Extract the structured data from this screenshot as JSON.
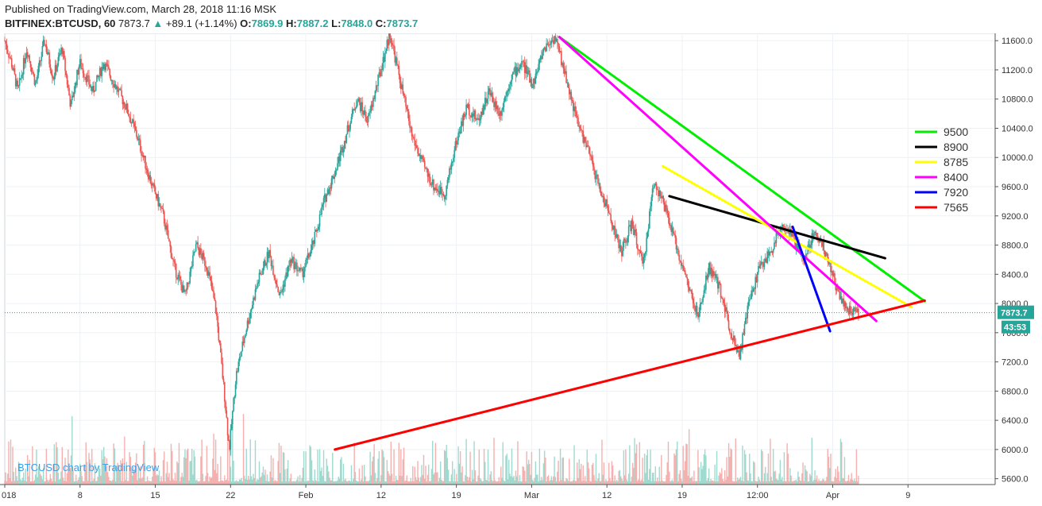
{
  "header": {
    "published": "Published on TradingView.com, March 28, 2018 11:16 MSK",
    "symbol": "BITFINEX:BTCUSD, 60",
    "last": "7873.7",
    "change": "+89.1 (+1.14%)",
    "o_label": "O:",
    "o_val": "7869.9",
    "h_label": "H:",
    "h_val": "7887.2",
    "l_label": "L:",
    "l_val": "7848.0",
    "c_label": "C:",
    "c_val": "7873.7"
  },
  "watermark": "BTCUSD chart by TradingView",
  "colors": {
    "up": "#26a69a",
    "down": "#ef5350",
    "last_price_badge": "#26a69a",
    "grid": "#eef1f5"
  },
  "chart_data": {
    "type": "line",
    "instrument": "BITFINEX:BTCUSD, 60",
    "x_ticks": [
      "018",
      "8",
      "15",
      "22",
      "Feb",
      "12",
      "19",
      "Mar",
      "12",
      "19",
      "12:00",
      "Apr",
      "9"
    ],
    "y_ticks": [
      5600.0,
      6000.0,
      6400.0,
      6800.0,
      7200.0,
      7600.0,
      8000.0,
      8400.0,
      8800.0,
      9200.0,
      9600.0,
      10000.0,
      10400.0,
      10800.0,
      11200.0,
      11600.0
    ],
    "ylim": [
      5520,
      11700
    ],
    "last_price": 7873.7,
    "last_price_label": "7873.7",
    "countdown_label": "43:53",
    "price_path": [
      {
        "x": 0.0,
        "y": 11600
      },
      {
        "x": 0.3,
        "y": 11300
      },
      {
        "x": 0.6,
        "y": 10900
      },
      {
        "x": 1.0,
        "y": 11500
      },
      {
        "x": 1.4,
        "y": 11000
      },
      {
        "x": 1.8,
        "y": 11600
      },
      {
        "x": 2.2,
        "y": 11100
      },
      {
        "x": 2.6,
        "y": 11500
      },
      {
        "x": 3.0,
        "y": 10700
      },
      {
        "x": 3.4,
        "y": 11300
      },
      {
        "x": 4.0,
        "y": 10900
      },
      {
        "x": 4.5,
        "y": 11300
      },
      {
        "x": 5.0,
        "y": 11000
      },
      {
        "x": 5.5,
        "y": 10700
      },
      {
        "x": 6.0,
        "y": 10300
      },
      {
        "x": 6.6,
        "y": 9700
      },
      {
        "x": 7.2,
        "y": 9200
      },
      {
        "x": 7.7,
        "y": 8500
      },
      {
        "x": 8.2,
        "y": 8100
      },
      {
        "x": 8.7,
        "y": 8800
      },
      {
        "x": 9.2,
        "y": 8500
      },
      {
        "x": 9.6,
        "y": 7900
      },
      {
        "x": 10.0,
        "y": 6700
      },
      {
        "x": 10.2,
        "y": 6000
      },
      {
        "x": 10.5,
        "y": 7000
      },
      {
        "x": 11.0,
        "y": 7700
      },
      {
        "x": 11.5,
        "y": 8300
      },
      {
        "x": 12.0,
        "y": 8700
      },
      {
        "x": 12.5,
        "y": 8100
      },
      {
        "x": 13.0,
        "y": 8600
      },
      {
        "x": 13.5,
        "y": 8400
      },
      {
        "x": 14.0,
        "y": 8800
      },
      {
        "x": 14.5,
        "y": 9400
      },
      {
        "x": 15.0,
        "y": 9800
      },
      {
        "x": 15.5,
        "y": 10300
      },
      {
        "x": 16.0,
        "y": 10800
      },
      {
        "x": 16.5,
        "y": 10500
      },
      {
        "x": 17.0,
        "y": 11100
      },
      {
        "x": 17.5,
        "y": 11700
      },
      {
        "x": 18.0,
        "y": 11000
      },
      {
        "x": 18.5,
        "y": 10300
      },
      {
        "x": 19.0,
        "y": 9900
      },
      {
        "x": 19.5,
        "y": 9600
      },
      {
        "x": 20.0,
        "y": 9500
      },
      {
        "x": 20.5,
        "y": 10200
      },
      {
        "x": 21.0,
        "y": 10700
      },
      {
        "x": 21.5,
        "y": 10500
      },
      {
        "x": 22.0,
        "y": 10900
      },
      {
        "x": 22.5,
        "y": 10600
      },
      {
        "x": 23.0,
        "y": 11100
      },
      {
        "x": 23.5,
        "y": 11300
      },
      {
        "x": 24.0,
        "y": 11000
      },
      {
        "x": 24.5,
        "y": 11500
      },
      {
        "x": 25.0,
        "y": 11650
      },
      {
        "x": 25.5,
        "y": 11100
      },
      {
        "x": 26.0,
        "y": 10500
      },
      {
        "x": 26.5,
        "y": 10100
      },
      {
        "x": 27.0,
        "y": 9600
      },
      {
        "x": 27.5,
        "y": 9200
      },
      {
        "x": 28.0,
        "y": 8700
      },
      {
        "x": 28.5,
        "y": 9100
      },
      {
        "x": 29.0,
        "y": 8500
      },
      {
        "x": 29.5,
        "y": 9700
      },
      {
        "x": 30.0,
        "y": 9300
      },
      {
        "x": 30.5,
        "y": 8800
      },
      {
        "x": 31.0,
        "y": 8300
      },
      {
        "x": 31.5,
        "y": 7800
      },
      {
        "x": 32.0,
        "y": 8500
      },
      {
        "x": 32.5,
        "y": 8200
      },
      {
        "x": 33.0,
        "y": 7600
      },
      {
        "x": 33.4,
        "y": 7300
      },
      {
        "x": 33.8,
        "y": 8000
      },
      {
        "x": 34.3,
        "y": 8500
      },
      {
        "x": 34.8,
        "y": 8700
      },
      {
        "x": 35.3,
        "y": 9100
      },
      {
        "x": 35.8,
        "y": 8900
      },
      {
        "x": 36.3,
        "y": 8600
      },
      {
        "x": 36.8,
        "y": 9000
      },
      {
        "x": 37.3,
        "y": 8700
      },
      {
        "x": 37.8,
        "y": 8200
      },
      {
        "x": 38.3,
        "y": 7900
      },
      {
        "x": 38.8,
        "y": 7874
      }
    ],
    "trendlines": [
      {
        "name": "9500",
        "color": "#00ee00",
        "points": [
          {
            "x": 25.2,
            "y": 11650
          },
          {
            "x": 41.8,
            "y": 8030
          }
        ]
      },
      {
        "name": "8900",
        "color": "#000000",
        "points": [
          {
            "x": 30.2,
            "y": 9470
          },
          {
            "x": 40.0,
            "y": 8620
          }
        ]
      },
      {
        "name": "8785",
        "color": "#ffff00",
        "points": [
          {
            "x": 29.9,
            "y": 9880
          },
          {
            "x": 41.2,
            "y": 7950
          }
        ]
      },
      {
        "name": "8400",
        "color": "#ff00ff",
        "points": [
          {
            "x": 25.2,
            "y": 11650
          },
          {
            "x": 39.6,
            "y": 7760
          }
        ]
      },
      {
        "name": "7920",
        "color": "#0000ff",
        "points": [
          {
            "x": 35.8,
            "y": 9050
          },
          {
            "x": 37.5,
            "y": 7620
          }
        ]
      },
      {
        "name": "7565",
        "color": "#ff0000",
        "points": [
          {
            "x": 15.0,
            "y": 6000
          },
          {
            "x": 41.8,
            "y": 8040
          }
        ]
      }
    ],
    "legend_position": "right",
    "grid": true
  }
}
